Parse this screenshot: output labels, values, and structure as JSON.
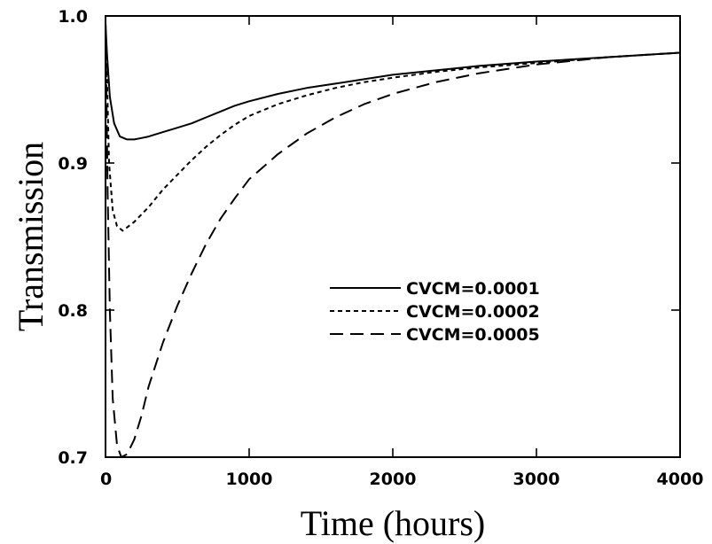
{
  "chart_data": {
    "type": "line",
    "title": "",
    "xlabel": "Time (hours)",
    "ylabel": "Transmission",
    "xlim": [
      0,
      4000
    ],
    "ylim": [
      0.7,
      1.0
    ],
    "x_ticks": [
      0,
      1000,
      2000,
      3000,
      4000
    ],
    "x_tick_labels": [
      "0",
      "1000",
      "2000",
      "3000",
      "4000"
    ],
    "y_ticks": [
      0.7,
      0.8,
      0.9,
      1.0
    ],
    "y_tick_labels": [
      "0.7",
      "0.8",
      "0.9",
      "1.0"
    ],
    "grid": false,
    "legend_position": "center-right",
    "series": [
      {
        "name": "CVCM=0.0001",
        "dash": "solid",
        "x": [
          0,
          10,
          30,
          60,
          100,
          150,
          200,
          250,
          300,
          400,
          500,
          600,
          700,
          800,
          900,
          1000,
          1200,
          1400,
          1600,
          1800,
          2000,
          2300,
          2600,
          3000,
          3500,
          4000
        ],
        "y": [
          0.995,
          0.975,
          0.945,
          0.927,
          0.918,
          0.916,
          0.916,
          0.917,
          0.918,
          0.921,
          0.924,
          0.927,
          0.931,
          0.935,
          0.939,
          0.942,
          0.947,
          0.951,
          0.954,
          0.957,
          0.96,
          0.963,
          0.966,
          0.969,
          0.972,
          0.975
        ]
      },
      {
        "name": "CVCM=0.0002",
        "dash": "short-dash",
        "x": [
          0,
          10,
          25,
          50,
          80,
          120,
          160,
          200,
          300,
          400,
          500,
          600,
          700,
          800,
          900,
          1000,
          1200,
          1400,
          1600,
          1800,
          2000,
          2300,
          2600,
          3000,
          3500,
          4000
        ],
        "y": [
          0.995,
          0.96,
          0.9,
          0.868,
          0.857,
          0.854,
          0.857,
          0.86,
          0.87,
          0.882,
          0.892,
          0.902,
          0.911,
          0.919,
          0.926,
          0.932,
          0.94,
          0.946,
          0.951,
          0.955,
          0.958,
          0.962,
          0.965,
          0.968,
          0.972,
          0.975
        ]
      },
      {
        "name": "CVCM=0.0005",
        "dash": "long-dash",
        "x": [
          0,
          5,
          15,
          30,
          50,
          80,
          110,
          150,
          200,
          250,
          300,
          400,
          500,
          600,
          700,
          800,
          900,
          1000,
          1200,
          1400,
          1600,
          1800,
          2000,
          2300,
          2600,
          3000,
          3500,
          4000
        ],
        "y": [
          0.995,
          0.96,
          0.88,
          0.8,
          0.74,
          0.708,
          0.7,
          0.702,
          0.712,
          0.728,
          0.748,
          0.778,
          0.803,
          0.825,
          0.845,
          0.862,
          0.876,
          0.889,
          0.906,
          0.92,
          0.931,
          0.94,
          0.947,
          0.955,
          0.961,
          0.967,
          0.972,
          0.975
        ]
      }
    ]
  }
}
